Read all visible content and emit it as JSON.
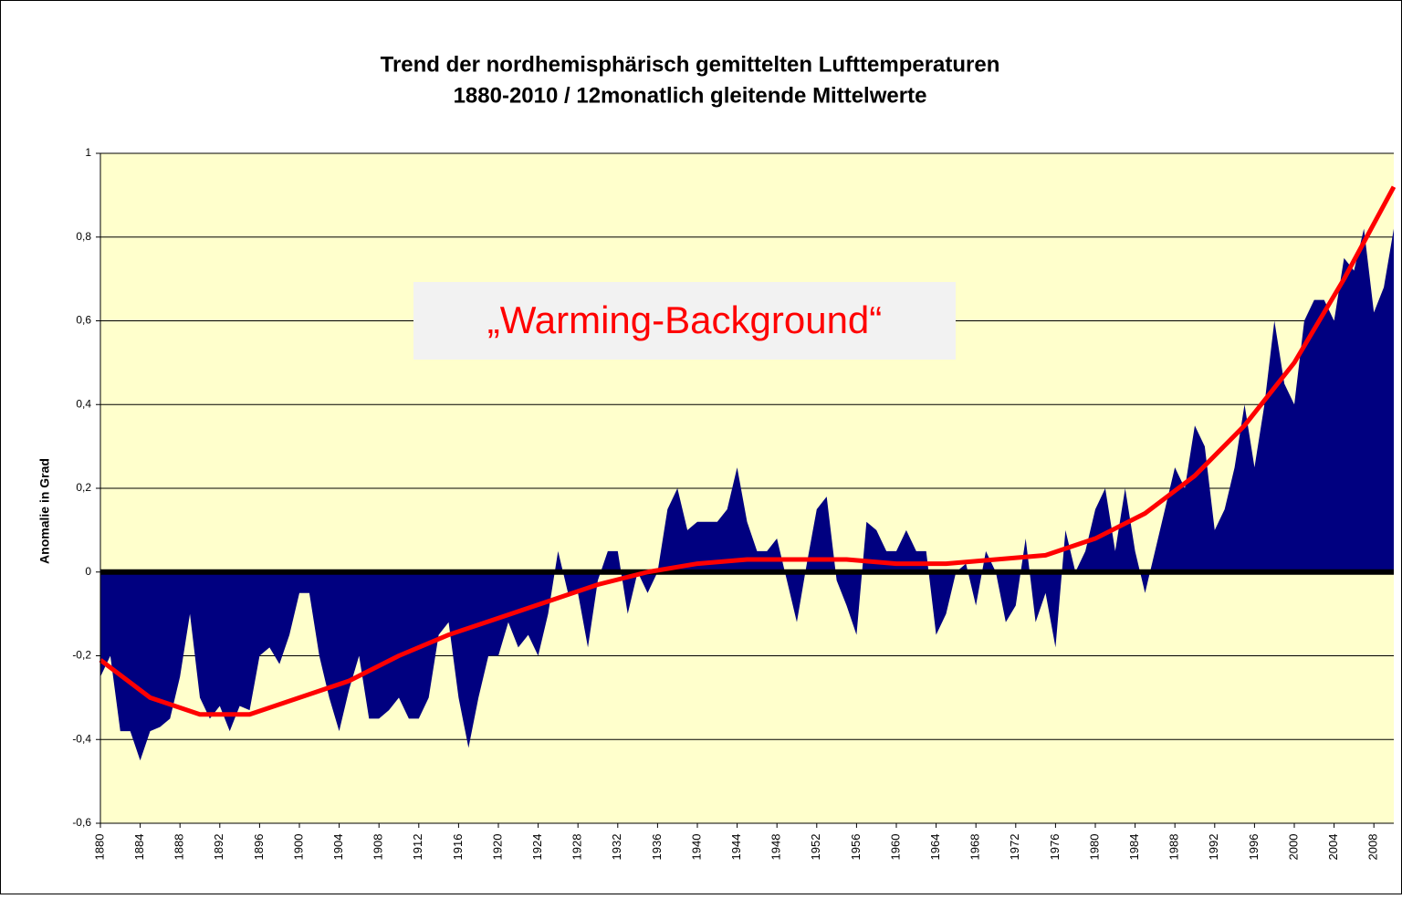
{
  "chart_data": {
    "type": "area",
    "title": [
      "Trend der nordhemisphärisch gemittelten Lufttemperaturen",
      "1880-2010 / 12monatlich gleitende Mittelwerte"
    ],
    "y_label": "Anomalie in Grad",
    "annotation": "„Warming-Background“",
    "x": [
      1880,
      1881,
      1882,
      1883,
      1884,
      1885,
      1886,
      1887,
      1888,
      1889,
      1890,
      1891,
      1892,
      1893,
      1894,
      1895,
      1896,
      1897,
      1898,
      1899,
      1900,
      1901,
      1902,
      1903,
      1904,
      1905,
      1906,
      1907,
      1908,
      1909,
      1910,
      1911,
      1912,
      1913,
      1914,
      1915,
      1916,
      1917,
      1918,
      1919,
      1920,
      1921,
      1922,
      1923,
      1924,
      1925,
      1926,
      1927,
      1928,
      1929,
      1930,
      1931,
      1932,
      1933,
      1934,
      1935,
      1936,
      1937,
      1938,
      1939,
      1940,
      1941,
      1942,
      1943,
      1944,
      1945,
      1946,
      1947,
      1948,
      1949,
      1950,
      1951,
      1952,
      1953,
      1954,
      1955,
      1956,
      1957,
      1958,
      1959,
      1960,
      1961,
      1962,
      1963,
      1964,
      1965,
      1966,
      1967,
      1968,
      1969,
      1970,
      1971,
      1972,
      1973,
      1974,
      1975,
      1976,
      1977,
      1978,
      1979,
      1980,
      1981,
      1982,
      1983,
      1984,
      1985,
      1986,
      1987,
      1988,
      1989,
      1990,
      1991,
      1992,
      1993,
      1994,
      1995,
      1996,
      1997,
      1998,
      1999,
      2000,
      2001,
      2002,
      2003,
      2004,
      2005,
      2006,
      2007,
      2008,
      2009,
      2010
    ],
    "series": [
      {
        "color": "#000080",
        "values": [
          -0.25,
          -0.2,
          -0.38,
          -0.38,
          -0.45,
          -0.38,
          -0.37,
          -0.35,
          -0.25,
          -0.1,
          -0.3,
          -0.35,
          -0.32,
          -0.38,
          -0.32,
          -0.33,
          -0.2,
          -0.18,
          -0.22,
          -0.15,
          -0.05,
          -0.05,
          -0.2,
          -0.3,
          -0.38,
          -0.28,
          -0.2,
          -0.35,
          -0.35,
          -0.33,
          -0.3,
          -0.35,
          -0.35,
          -0.3,
          -0.15,
          -0.12,
          -0.3,
          -0.42,
          -0.3,
          -0.2,
          -0.2,
          -0.12,
          -0.18,
          -0.15,
          -0.2,
          -0.1,
          0.05,
          -0.05,
          -0.05,
          -0.18,
          -0.02,
          0.05,
          0.05,
          -0.1,
          0.0,
          -0.05,
          0.0,
          0.15,
          0.2,
          0.1,
          0.12,
          0.12,
          0.12,
          0.15,
          0.25,
          0.12,
          0.05,
          0.05,
          0.08,
          -0.02,
          -0.12,
          0.02,
          0.15,
          0.18,
          -0.02,
          -0.08,
          -0.15,
          0.12,
          0.1,
          0.05,
          0.05,
          0.1,
          0.05,
          0.05,
          -0.15,
          -0.1,
          0.0,
          0.02,
          -0.08,
          0.05,
          0.0,
          -0.12,
          -0.08,
          0.08,
          -0.12,
          -0.05,
          -0.18,
          0.1,
          0.0,
          0.05,
          0.15,
          0.2,
          0.05,
          0.2,
          0.05,
          -0.05,
          0.05,
          0.15,
          0.25,
          0.2,
          0.35,
          0.3,
          0.1,
          0.15,
          0.25,
          0.4,
          0.25,
          0.4,
          0.6,
          0.45,
          0.4,
          0.6,
          0.65,
          0.65,
          0.6,
          0.75,
          0.72,
          0.82,
          0.62,
          0.68,
          0.82
        ]
      },
      {
        "color": "#ff0000",
        "x": [
          1880,
          1885,
          1890,
          1895,
          1900,
          1905,
          1910,
          1915,
          1920,
          1925,
          1930,
          1935,
          1940,
          1945,
          1950,
          1955,
          1960,
          1965,
          1970,
          1975,
          1980,
          1985,
          1990,
          1995,
          2000,
          2005,
          2010
        ],
        "values": [
          -0.21,
          -0.3,
          -0.34,
          -0.34,
          -0.3,
          -0.26,
          -0.2,
          -0.15,
          -0.11,
          -0.07,
          -0.03,
          0.0,
          0.02,
          0.03,
          0.03,
          0.03,
          0.02,
          0.02,
          0.03,
          0.04,
          0.08,
          0.14,
          0.23,
          0.35,
          0.5,
          0.7,
          0.92
        ]
      }
    ],
    "xlim": [
      1880,
      2010
    ],
    "xticks": [
      1880,
      1884,
      1888,
      1892,
      1896,
      1900,
      1904,
      1908,
      1912,
      1916,
      1920,
      1924,
      1928,
      1932,
      1936,
      1940,
      1944,
      1948,
      1952,
      1956,
      1960,
      1964,
      1968,
      1972,
      1976,
      1980,
      1984,
      1988,
      1992,
      1996,
      2000,
      2004,
      2008
    ],
    "ylim": [
      -0.6,
      1
    ],
    "yticks": [
      {
        "value": -0.6,
        "label": "-0,6"
      },
      {
        "value": -0.4,
        "label": "-0,4"
      },
      {
        "value": -0.2,
        "label": "-0,2"
      },
      0,
      {
        "value": 0.2,
        "label": "0,2"
      },
      {
        "value": 0.4,
        "label": "0,4"
      },
      {
        "value": 0.6,
        "label": "0,6"
      },
      {
        "value": 0.8,
        "label": "0,8"
      },
      1
    ],
    "grid": true,
    "background": "#ffffcc"
  }
}
